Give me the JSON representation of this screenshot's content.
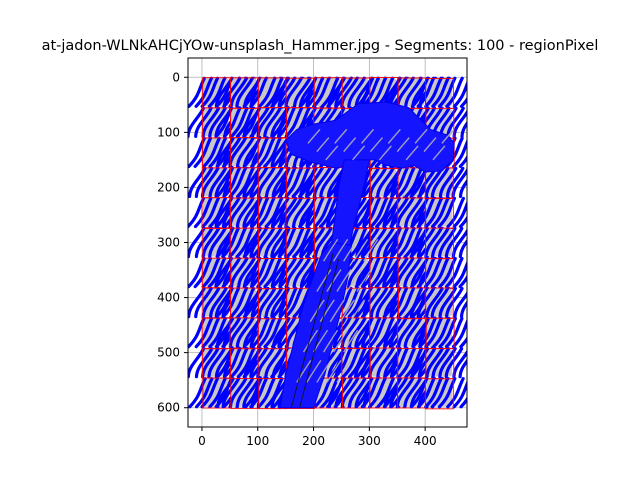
{
  "chart_data": {
    "type": "heatmap",
    "title": "at-jadon-WLNkAHCjYOw-unsplash_Hammer.jpg - Segments: 100 - regionPixel",
    "xlabel": "",
    "ylabel": "",
    "xlim": [
      -25,
      475
    ],
    "ylim": [
      635,
      -35
    ],
    "y_inverted": true,
    "grid": true,
    "x_ticks": [
      0,
      100,
      200,
      300,
      400
    ],
    "y_ticks": [
      0,
      100,
      200,
      300,
      400,
      500,
      600
    ],
    "image_extent": {
      "x": [
        0,
        450
      ],
      "y": [
        0,
        600
      ]
    },
    "segments": 100,
    "segment_grid": {
      "cols": 9,
      "rows": 11
    },
    "colors": {
      "stripe": "#0000ff",
      "cell_background": "#c8c8c8",
      "segment_boundary": "#ff0000",
      "hammer": "#1414ff"
    }
  }
}
